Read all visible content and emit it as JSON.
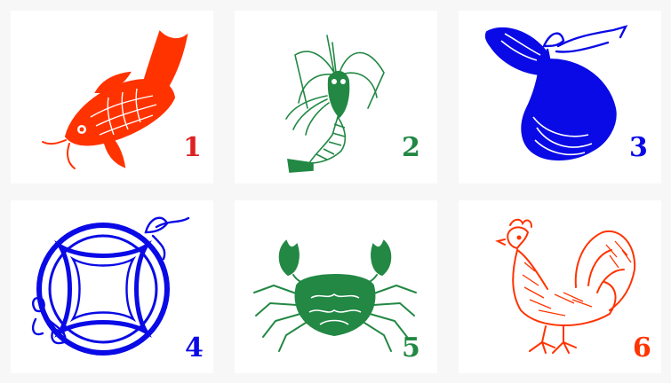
{
  "colors": {
    "red": "#ff3300",
    "crimson": "#dd2222",
    "green": "#228844",
    "blue": "#0a0ae6"
  },
  "tiles": [
    {
      "number": "1",
      "subject": "carp-fish-icon",
      "color": "#ff3300",
      "number_color": "#dd2222"
    },
    {
      "number": "2",
      "subject": "shrimp-icon",
      "color": "#228844",
      "number_color": "#228844"
    },
    {
      "number": "3",
      "subject": "money-bag-icon",
      "color": "#0a0ae6",
      "number_color": "#0a0ae6"
    },
    {
      "number": "4",
      "subject": "coin-charm-icon",
      "color": "#0a0ae6",
      "number_color": "#0a0ae6"
    },
    {
      "number": "5",
      "subject": "crab-icon",
      "color": "#228844",
      "number_color": "#228844"
    },
    {
      "number": "6",
      "subject": "rooster-icon",
      "color": "#ff3300",
      "number_color": "#ff3300"
    }
  ]
}
